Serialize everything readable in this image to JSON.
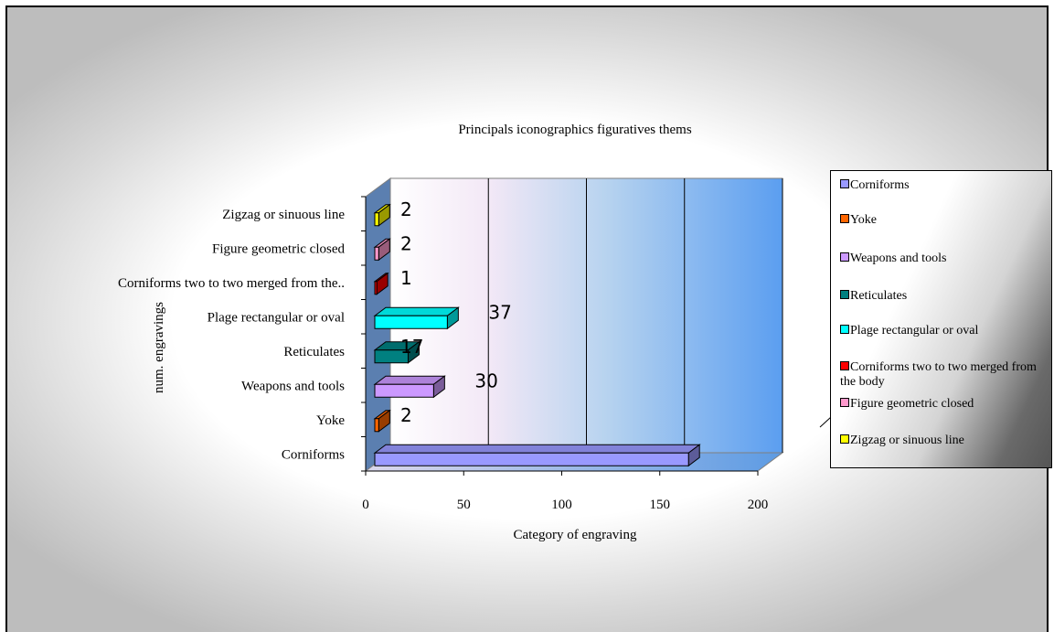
{
  "chart_data": {
    "type": "bar",
    "orientation": "horizontal",
    "title": "Principals iconographics figuratives thems",
    "xlabel": "Category of engraving",
    "ylabel": "num. engravings",
    "xlim": [
      0,
      200
    ],
    "xticks": [
      "0",
      "50",
      "100",
      "150",
      "200"
    ],
    "categories": [
      "Corniforms",
      "Yoke",
      "Weapons and tools",
      "Reticulates",
      "Plage rectangular or oval",
      "Corniforms two to two merged from the body",
      "Figure geometric closed",
      "Zigzag or sinuous line"
    ],
    "category_tick_labels": [
      "Corniforms",
      "Yoke",
      "Weapons and tools",
      "Reticulates",
      "Plage rectangular or oval",
      "Corniforms two to two merged from the..",
      "Figure geometric closed",
      "Zigzag or sinuous line"
    ],
    "values": [
      160,
      2,
      30,
      17,
      37,
      1,
      2,
      2
    ],
    "data_labels": [
      "",
      "2",
      "30",
      "17",
      "37",
      "1",
      "2",
      "2"
    ],
    "colors": [
      "#9999ff",
      "#ff6600",
      "#cc99ff",
      "#008080",
      "#00ffff",
      "#ff0000",
      "#ff99cc",
      "#ffff00"
    ],
    "grid": true,
    "legend_position": "right"
  },
  "legend": {
    "items": [
      {
        "label": "Corniforms",
        "color": "#9999ff"
      },
      {
        "label": "Yoke",
        "color": "#ff6600"
      },
      {
        "label": "Weapons and tools",
        "color": "#cc99ff"
      },
      {
        "label": "Reticulates",
        "color": "#008080"
      },
      {
        "label": "Plage rectangular or oval",
        "color": "#00ffff"
      },
      {
        "label": "Corniforms two to two merged from the body",
        "color": "#ff0000"
      },
      {
        "label": "Figure geometric closed",
        "color": "#ff99cc"
      },
      {
        "label": "Zigzag or sinuous line",
        "color": "#ffff00"
      }
    ]
  }
}
